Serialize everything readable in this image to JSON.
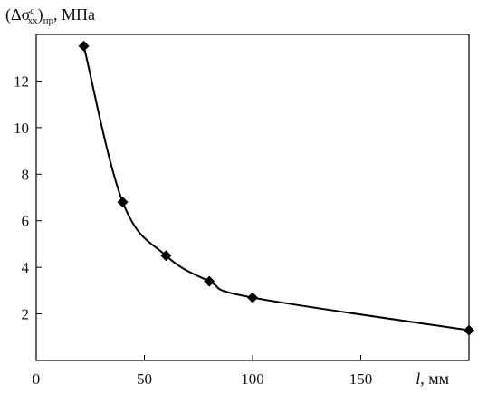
{
  "chart_data": {
    "type": "line",
    "ylabel_prefix": "(Δσ",
    "ylabel_sup": "ς",
    "ylabel_sub": "xx",
    "ylabel_close": ")",
    "ylabel_paren_sub": "пр",
    "ylabel_unit": ", МПа",
    "xlabel_var": "l",
    "xlabel_unit": ", мм",
    "xlim": [
      0,
      200
    ],
    "ylim": [
      0,
      14
    ],
    "x_ticks": [
      0,
      50,
      100,
      150
    ],
    "y_ticks": [
      2,
      4,
      6,
      8,
      10,
      12
    ],
    "series": [
      {
        "x": [
          22,
          40,
          60,
          80,
          100,
          200
        ],
        "y": [
          13.5,
          6.8,
          4.5,
          3.4,
          2.7,
          1.3
        ]
      }
    ],
    "marker": "diamond",
    "color": "#000000"
  }
}
